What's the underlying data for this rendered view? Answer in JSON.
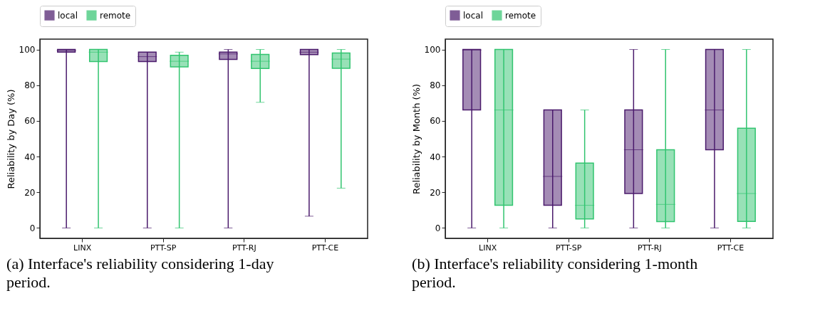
{
  "chart_data": [
    {
      "type": "box",
      "ylabel": "Reliability by Day (%)",
      "categories": [
        "LINX",
        "PTT-SP",
        "PTT-RJ",
        "PTT-CE"
      ],
      "ylim": [
        -5.8,
        105.8
      ],
      "yticks": [
        0,
        20,
        40,
        60,
        80,
        100
      ],
      "grid": false,
      "legend": "top",
      "annotations": [
        "(a) Interface's reliability considering 1-day period."
      ],
      "series": [
        {
          "name": "local",
          "color": "#4a1a6b",
          "boxes": [
            {
              "low": 0,
              "q1": 98.5,
              "median": 99.5,
              "q3": 100,
              "high": 100
            },
            {
              "low": 0,
              "q1": 93.2,
              "median": 96,
              "q3": 98.5,
              "high": 98.5
            },
            {
              "low": 0,
              "q1": 94.4,
              "median": 97.5,
              "q3": 98.5,
              "high": 100
            },
            {
              "low": 6.6,
              "q1": 97.1,
              "median": 98.5,
              "q3": 100,
              "high": 100
            }
          ]
        },
        {
          "name": "remote",
          "color": "#31c46f",
          "boxes": [
            {
              "low": 0,
              "q1": 93.2,
              "median": 98.5,
              "q3": 100,
              "high": 100
            },
            {
              "low": 0,
              "q1": 90.3,
              "median": 93.4,
              "q3": 96.7,
              "high": 98.5
            },
            {
              "low": 70.4,
              "q1": 89.4,
              "median": 93.4,
              "q3": 97.2,
              "high": 100
            },
            {
              "low": 22.3,
              "q1": 89.5,
              "median": 94.6,
              "q3": 98,
              "high": 100
            }
          ]
        }
      ]
    },
    {
      "type": "box",
      "ylabel": "Reliability by Month (%)",
      "categories": [
        "LINX",
        "PTT-SP",
        "PTT-RJ",
        "PTT-CE"
      ],
      "ylim": [
        -5.8,
        105.8
      ],
      "yticks": [
        0,
        20,
        40,
        60,
        80,
        100
      ],
      "grid": false,
      "legend": "top",
      "annotations": [
        "(b) Interface's reliability considering 1-month period."
      ],
      "series": [
        {
          "name": "local",
          "color": "#4a1a6b",
          "boxes": [
            {
              "low": 0,
              "q1": 66.1,
              "median": 99.7,
              "q3": 100,
              "high": 100
            },
            {
              "low": 0,
              "q1": 12.7,
              "median": 28.9,
              "q3": 66.1,
              "high": 66.1
            },
            {
              "low": 0,
              "q1": 19.3,
              "median": 43.8,
              "q3": 66.1,
              "high": 100
            },
            {
              "low": 0,
              "q1": 43.8,
              "median": 66.1,
              "q3": 100,
              "high": 100
            }
          ]
        },
        {
          "name": "remote",
          "color": "#31c46f",
          "boxes": [
            {
              "low": 0,
              "q1": 12.7,
              "median": 66.1,
              "q3": 100,
              "high": 100
            },
            {
              "low": 0,
              "q1": 5.1,
              "median": 12.7,
              "q3": 36.3,
              "high": 66.1
            },
            {
              "low": 0,
              "q1": 3.6,
              "median": 13.2,
              "q3": 43.8,
              "high": 100
            },
            {
              "low": 0,
              "q1": 3.7,
              "median": 19.3,
              "q3": 55.9,
              "high": 100
            }
          ]
        }
      ]
    }
  ]
}
